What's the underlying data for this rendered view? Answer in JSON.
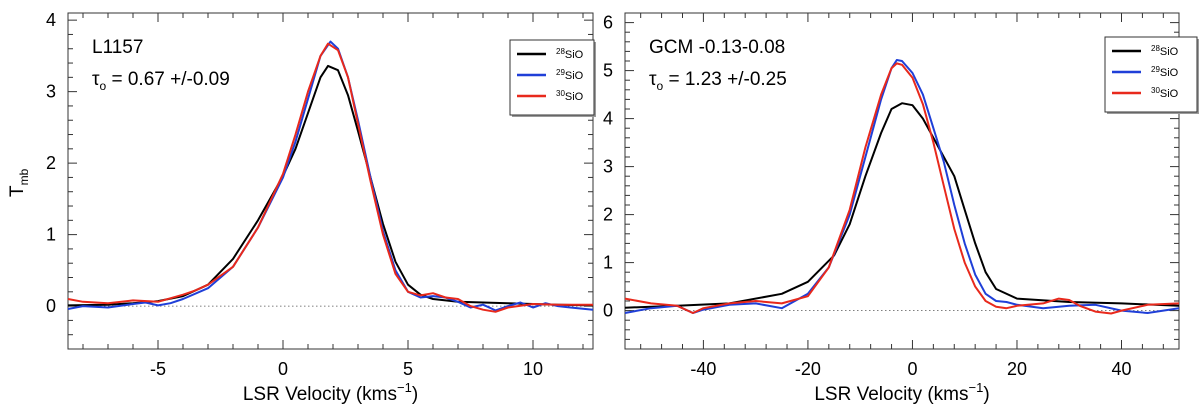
{
  "chart_data": [
    {
      "type": "line",
      "title": "",
      "xlabel": "LSR Velocity (kms",
      "xlabel_exp": "−1",
      "xlabel_close": ")",
      "ylabel_main": "T",
      "ylabel_sub": "mb",
      "xlim": [
        -8.6,
        12.4
      ],
      "ylim": [
        -0.6,
        4.1
      ],
      "xticks": [
        -5,
        0,
        5,
        10
      ],
      "yticks": [
        0,
        1,
        2,
        3,
        4
      ],
      "annotation_source": "L1157",
      "annotation_tau_symbol": "τ",
      "annotation_tau_sub": "o",
      "annotation_tau_value": " = 0.67 +/-0.09",
      "baseline": 0,
      "legend_position": "top-right",
      "series": [
        {
          "name_sup": "28",
          "name": "SiO",
          "color": "#000000",
          "x": [
            -8.6,
            -7,
            -6,
            -5,
            -4,
            -3,
            -2,
            -1,
            0,
            0.5,
            1,
            1.5,
            1.8,
            2.2,
            2.6,
            3,
            3.5,
            4,
            4.5,
            5,
            5.5,
            6,
            7,
            8,
            9,
            10,
            11,
            12.4
          ],
          "y": [
            0.01,
            0.02,
            0.04,
            0.07,
            0.14,
            0.3,
            0.66,
            1.2,
            1.82,
            2.2,
            2.7,
            3.2,
            3.36,
            3.3,
            2.95,
            2.45,
            1.8,
            1.15,
            0.62,
            0.3,
            0.16,
            0.1,
            0.06,
            0.05,
            0.04,
            0.03,
            0.02,
            0.01
          ]
        },
        {
          "name_sup": "29",
          "name": "SiO",
          "color": "#1f3fd8",
          "x": [
            -8.6,
            -8,
            -7,
            -6,
            -5.5,
            -5,
            -4.5,
            -4,
            -3,
            -2,
            -1,
            0,
            0.5,
            1,
            1.5,
            1.9,
            2.2,
            2.6,
            3,
            3.5,
            4,
            4.5,
            5,
            5.5,
            6,
            6.5,
            7,
            7.5,
            8,
            8.5,
            9,
            9.5,
            10,
            10.5,
            11,
            11.5,
            12.4
          ],
          "y": [
            -0.04,
            0.0,
            -0.02,
            0.03,
            0.05,
            0.01,
            0.04,
            0.1,
            0.25,
            0.55,
            1.1,
            1.8,
            2.3,
            2.9,
            3.5,
            3.7,
            3.6,
            3.2,
            2.6,
            1.8,
            1.05,
            0.5,
            0.2,
            0.12,
            0.14,
            0.12,
            0.06,
            -0.02,
            0.02,
            -0.06,
            0.0,
            0.05,
            -0.02,
            0.04,
            0.0,
            -0.02,
            -0.05
          ]
        },
        {
          "name_sup": "30",
          "name": "SiO",
          "color": "#e8291c",
          "x": [
            -8.6,
            -8,
            -7,
            -6,
            -5,
            -4,
            -3.5,
            -3,
            -2,
            -1,
            0,
            0.5,
            1,
            1.5,
            1.8,
            2.2,
            2.6,
            3,
            3.5,
            4,
            4.5,
            5,
            5.5,
            6,
            6.5,
            7,
            7.5,
            8,
            8.5,
            9,
            10,
            11,
            12.4
          ],
          "y": [
            0.1,
            0.06,
            0.04,
            0.08,
            0.06,
            0.16,
            0.22,
            0.3,
            0.55,
            1.1,
            1.85,
            2.4,
            3.0,
            3.5,
            3.67,
            3.58,
            3.2,
            2.55,
            1.75,
            1.0,
            0.45,
            0.2,
            0.15,
            0.18,
            0.12,
            0.1,
            0.0,
            -0.05,
            -0.08,
            -0.02,
            0.03,
            0.02,
            0.02
          ]
        }
      ]
    },
    {
      "type": "line",
      "title": "",
      "xlabel": "LSR Velocity (kms",
      "xlabel_exp": "−1",
      "xlabel_close": ")",
      "xlim": [
        -55,
        51
      ],
      "ylim": [
        -0.8,
        6.2
      ],
      "xticks": [
        -40,
        -20,
        0,
        20,
        40
      ],
      "yticks": [
        0,
        1,
        2,
        3,
        4,
        5,
        6
      ],
      "annotation_source": "GCM -0.13-0.08",
      "annotation_tau_symbol": "τ",
      "annotation_tau_sub": "o",
      "annotation_tau_value": " = 1.23 +/-0.25",
      "baseline": 0,
      "legend_position": "top-right",
      "series": [
        {
          "name_sup": "28",
          "name": "SiO",
          "color": "#000000",
          "x": [
            -55,
            -45,
            -35,
            -25,
            -20,
            -15,
            -12,
            -9,
            -6,
            -4,
            -2,
            0,
            2,
            4,
            6,
            8,
            10,
            12,
            14,
            16,
            20,
            30,
            40,
            51
          ],
          "y": [
            0.06,
            0.1,
            0.15,
            0.35,
            0.6,
            1.15,
            1.8,
            2.8,
            3.7,
            4.2,
            4.32,
            4.28,
            4.0,
            3.6,
            3.2,
            2.8,
            2.1,
            1.4,
            0.8,
            0.45,
            0.25,
            0.18,
            0.15,
            0.1
          ]
        },
        {
          "name_sup": "29",
          "name": "SiO",
          "color": "#1f3fd8",
          "x": [
            -55,
            -50,
            -45,
            -42,
            -40,
            -35,
            -30,
            -25,
            -20,
            -16,
            -12,
            -9,
            -6,
            -4,
            -3,
            -2,
            0,
            2,
            4,
            6,
            8,
            10,
            12,
            14,
            16,
            18,
            20,
            25,
            30,
            35,
            40,
            45,
            51
          ],
          "y": [
            -0.05,
            0.05,
            0.1,
            -0.05,
            0.02,
            0.12,
            0.15,
            0.05,
            0.35,
            0.9,
            2.0,
            3.2,
            4.4,
            5.05,
            5.22,
            5.2,
            4.95,
            4.5,
            3.8,
            3.1,
            2.2,
            1.4,
            0.75,
            0.35,
            0.2,
            0.18,
            0.12,
            0.05,
            0.1,
            0.12,
            0.0,
            -0.05,
            0.05
          ]
        },
        {
          "name_sup": "30",
          "name": "SiO",
          "color": "#e8291c",
          "x": [
            -55,
            -50,
            -45,
            -42,
            -40,
            -35,
            -30,
            -25,
            -20,
            -16,
            -12,
            -9,
            -6,
            -4,
            -3,
            -2,
            0,
            2,
            4,
            6,
            8,
            10,
            12,
            14,
            16,
            18,
            20,
            25,
            28,
            30,
            32,
            35,
            38,
            40,
            45,
            51
          ],
          "y": [
            0.25,
            0.15,
            0.1,
            -0.05,
            0.05,
            0.15,
            0.2,
            0.15,
            0.3,
            0.9,
            2.1,
            3.4,
            4.5,
            5.05,
            5.15,
            5.12,
            4.85,
            4.3,
            3.5,
            2.6,
            1.7,
            1.0,
            0.5,
            0.2,
            0.08,
            0.05,
            0.1,
            0.15,
            0.25,
            0.22,
            0.1,
            -0.02,
            -0.06,
            0.0,
            0.12,
            0.15
          ]
        }
      ]
    }
  ]
}
